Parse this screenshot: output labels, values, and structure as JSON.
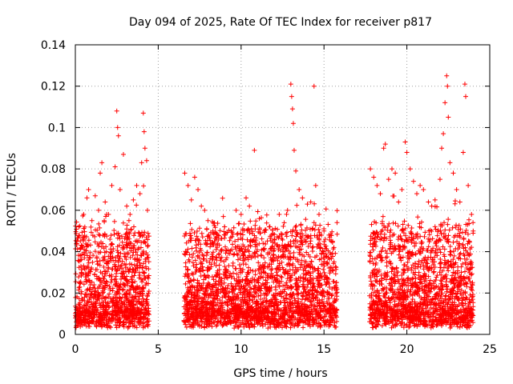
{
  "chart_data": {
    "type": "scatter",
    "title": "Day 094 of 2025, Rate Of TEC Index for receiver p817",
    "xlabel": "GPS time / hours",
    "ylabel": "ROTI / TECUs",
    "xlim": [
      0,
      25
    ],
    "ylim": [
      0,
      0.14
    ],
    "x_ticks": [
      0,
      5,
      10,
      15,
      20,
      25
    ],
    "x_tick_labels": [
      "0",
      "5",
      "10",
      "15",
      "20",
      "25"
    ],
    "y_ticks": [
      0,
      0.02,
      0.04,
      0.06,
      0.08,
      0.1,
      0.12,
      0.14
    ],
    "y_tick_labels": [
      "0",
      "0.02",
      "0.04",
      "0.06",
      "0.08",
      "0.1",
      "0.12",
      "0.14"
    ],
    "grid": true,
    "marker": "+",
    "color": "#ff0000",
    "series": [
      {
        "values_description_free": true,
        "points": [
          [
            0.1,
            0.045
          ],
          [
            0.2,
            0.052
          ],
          [
            0.3,
            0.038
          ],
          [
            0.5,
            0.058
          ],
          [
            0.7,
            0.066
          ],
          [
            0.8,
            0.07
          ],
          [
            1.0,
            0.055
          ],
          [
            1.2,
            0.067
          ],
          [
            1.4,
            0.06
          ],
          [
            1.5,
            0.078
          ],
          [
            1.6,
            0.083
          ],
          [
            1.8,
            0.064
          ],
          [
            2.0,
            0.058
          ],
          [
            2.2,
            0.072
          ],
          [
            2.4,
            0.081
          ],
          [
            2.5,
            0.108
          ],
          [
            2.55,
            0.1
          ],
          [
            2.6,
            0.096
          ],
          [
            2.7,
            0.07
          ],
          [
            2.9,
            0.087
          ],
          [
            3.1,
            0.062
          ],
          [
            3.3,
            0.058
          ],
          [
            3.5,
            0.065
          ],
          [
            3.7,
            0.072
          ],
          [
            3.9,
            0.068
          ],
          [
            4.0,
            0.083
          ],
          [
            4.1,
            0.107
          ],
          [
            4.15,
            0.098
          ],
          [
            4.2,
            0.09
          ],
          [
            4.3,
            0.084
          ],
          [
            4.35,
            0.06
          ],
          [
            6.6,
            0.078
          ],
          [
            6.8,
            0.072
          ],
          [
            7.0,
            0.065
          ],
          [
            7.2,
            0.076
          ],
          [
            7.4,
            0.07
          ],
          [
            7.6,
            0.062
          ],
          [
            7.8,
            0.06
          ],
          [
            8.0,
            0.055
          ],
          [
            8.3,
            0.05
          ],
          [
            8.6,
            0.048
          ],
          [
            9.0,
            0.052
          ],
          [
            9.4,
            0.05
          ],
          [
            9.7,
            0.06
          ],
          [
            10.0,
            0.058
          ],
          [
            10.3,
            0.066
          ],
          [
            10.5,
            0.062
          ],
          [
            10.8,
            0.089
          ],
          [
            11.1,
            0.056
          ],
          [
            11.4,
            0.05
          ],
          [
            11.7,
            0.052
          ],
          [
            12.0,
            0.046
          ],
          [
            12.3,
            0.058
          ],
          [
            12.6,
            0.054
          ],
          [
            12.8,
            0.06
          ],
          [
            13.0,
            0.121
          ],
          [
            13.05,
            0.115
          ],
          [
            13.1,
            0.109
          ],
          [
            13.15,
            0.102
          ],
          [
            13.2,
            0.089
          ],
          [
            13.3,
            0.079
          ],
          [
            13.5,
            0.07
          ],
          [
            13.7,
            0.066
          ],
          [
            14.0,
            0.063
          ],
          [
            14.2,
            0.064
          ],
          [
            14.4,
            0.12
          ],
          [
            14.5,
            0.072
          ],
          [
            14.7,
            0.058
          ],
          [
            15.0,
            0.05
          ],
          [
            15.3,
            0.048
          ],
          [
            15.6,
            0.042
          ],
          [
            17.8,
            0.08
          ],
          [
            18.0,
            0.076
          ],
          [
            18.2,
            0.072
          ],
          [
            18.4,
            0.068
          ],
          [
            18.6,
            0.09
          ],
          [
            18.7,
            0.092
          ],
          [
            18.9,
            0.075
          ],
          [
            19.1,
            0.08
          ],
          [
            19.3,
            0.078
          ],
          [
            19.5,
            0.064
          ],
          [
            19.7,
            0.07
          ],
          [
            19.9,
            0.093
          ],
          [
            20.0,
            0.088
          ],
          [
            20.2,
            0.08
          ],
          [
            20.4,
            0.074
          ],
          [
            20.6,
            0.068
          ],
          [
            20.8,
            0.072
          ],
          [
            21.0,
            0.07
          ],
          [
            21.3,
            0.064
          ],
          [
            21.5,
            0.062
          ],
          [
            21.7,
            0.065
          ],
          [
            22.0,
            0.075
          ],
          [
            22.1,
            0.09
          ],
          [
            22.2,
            0.097
          ],
          [
            22.3,
            0.112
          ],
          [
            22.4,
            0.125
          ],
          [
            22.45,
            0.12
          ],
          [
            22.5,
            0.105
          ],
          [
            22.6,
            0.083
          ],
          [
            22.8,
            0.078
          ],
          [
            23.0,
            0.07
          ],
          [
            23.2,
            0.064
          ],
          [
            23.4,
            0.088
          ],
          [
            23.5,
            0.121
          ],
          [
            23.55,
            0.115
          ],
          [
            23.7,
            0.072
          ],
          [
            23.9,
            0.058
          ],
          [
            24.0,
            0.05
          ]
        ]
      }
    ]
  }
}
